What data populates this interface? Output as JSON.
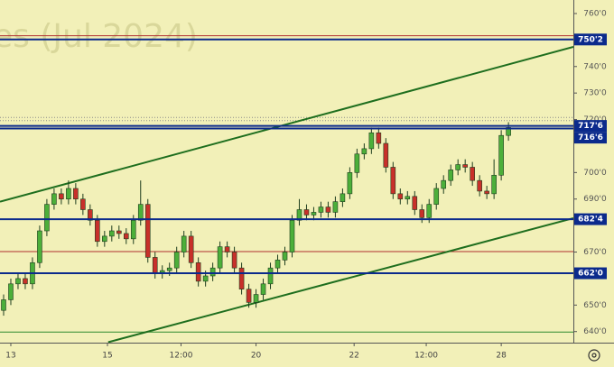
{
  "chart_data": {
    "type": "candlestick",
    "watermark": "es (Jul 2024)",
    "xlim": [
      -0.5,
      79
    ],
    "ylim": [
      636.5,
      765.1
    ],
    "xticks": [
      {
        "value": 1,
        "label": "13"
      },
      {
        "value": 14.4,
        "label": "15"
      },
      {
        "value": 24.6,
        "label": "12:00"
      },
      {
        "value": 35,
        "label": "20"
      },
      {
        "value": 48.6,
        "label": "22"
      },
      {
        "value": 58.6,
        "label": "12:00"
      },
      {
        "value": 69,
        "label": "28"
      }
    ],
    "yticks": [
      {
        "value": 760,
        "label": "760'0"
      },
      {
        "value": 740,
        "label": "740'0"
      },
      {
        "value": 730,
        "label": "730'0"
      },
      {
        "value": 720,
        "label": "720'0"
      },
      {
        "value": 700,
        "label": "700'0"
      },
      {
        "value": 690,
        "label": "690'0"
      },
      {
        "value": 670,
        "label": "670'0"
      },
      {
        "value": 650,
        "label": "650'0"
      },
      {
        "value": 640,
        "label": "640'0"
      }
    ],
    "up_color": "#4caf3a",
    "down_color": "#c8302a",
    "open": [
      648,
      652,
      658,
      660,
      658,
      666,
      678,
      688,
      692,
      690,
      694,
      690,
      686,
      682,
      674,
      676,
      678,
      677,
      675,
      682,
      688,
      668,
      662,
      663,
      664,
      670,
      676,
      666,
      659,
      661,
      664,
      672,
      670,
      664,
      656,
      651,
      654,
      658,
      664,
      667,
      670,
      682,
      686,
      684,
      685,
      687,
      685,
      689,
      692,
      700,
      707,
      709,
      715,
      711,
      702,
      692,
      690,
      691,
      686,
      683,
      688,
      694,
      697,
      701,
      703,
      702,
      697,
      693,
      692,
      699,
      714
    ],
    "high": [
      654,
      660,
      662,
      662,
      668,
      680,
      690,
      694,
      694,
      697,
      696,
      692,
      688,
      684,
      678,
      680,
      680,
      679,
      684,
      697,
      690,
      670,
      665,
      666,
      672,
      678,
      678,
      668,
      663,
      666,
      674,
      674,
      672,
      666,
      658,
      656,
      660,
      666,
      669,
      672,
      684,
      690,
      688,
      687,
      689,
      689,
      691,
      694,
      702,
      709,
      711,
      717,
      717,
      713,
      704,
      694,
      693,
      693,
      688,
      690,
      696,
      699,
      703,
      705,
      705,
      704,
      699,
      695,
      705,
      716,
      719
    ],
    "low": [
      646,
      650,
      656,
      656,
      656,
      664,
      676,
      686,
      688,
      688,
      688,
      684,
      680,
      672,
      672,
      674,
      675,
      673,
      673,
      680,
      666,
      660,
      660,
      661,
      662,
      668,
      664,
      657,
      657,
      659,
      662,
      668,
      662,
      654,
      649,
      649,
      652,
      656,
      662,
      665,
      668,
      680,
      682,
      682,
      683,
      683,
      683,
      687,
      690,
      698,
      705,
      707,
      709,
      700,
      690,
      688,
      688,
      684,
      681,
      681,
      686,
      692,
      695,
      699,
      700,
      695,
      691,
      690,
      690,
      697,
      712
    ],
    "close": [
      652,
      658,
      660,
      658,
      666,
      678,
      688,
      692,
      690,
      694,
      690,
      686,
      682,
      674,
      676,
      678,
      677,
      675,
      682,
      688,
      668,
      662,
      663,
      664,
      670,
      676,
      666,
      659,
      661,
      664,
      672,
      670,
      664,
      656,
      651,
      654,
      658,
      664,
      667,
      670,
      682,
      686,
      684,
      685,
      687,
      685,
      689,
      692,
      700,
      707,
      709,
      715,
      711,
      702,
      692,
      690,
      691,
      686,
      683,
      688,
      694,
      697,
      701,
      703,
      702,
      697,
      693,
      692,
      699,
      714,
      717
    ],
    "levels": [
      {
        "value": 750.2,
        "label": "750'2",
        "color": "#0b2a8c"
      },
      {
        "value": 717.6,
        "label": "717'6",
        "color": "#0b2a8c"
      },
      {
        "value": 716.6,
        "label": "716'6",
        "color": "#0b2a8c"
      },
      {
        "value": 682.4,
        "label": "682'4",
        "color": "#0b2a8c"
      },
      {
        "value": 662.0,
        "label": "662'0",
        "color": "#0b2a8c"
      }
    ],
    "lines": [
      {
        "value": 751.6,
        "color": "#b03030"
      },
      {
        "value": 670.2,
        "color": "#b03030"
      },
      {
        "value": 720.8,
        "color": "#8a8a8a",
        "dash": true
      },
      {
        "value": 719.6,
        "color": "#8a8a8a",
        "dash": true
      },
      {
        "value": 639.8,
        "color": "#2e8b2e"
      }
    ],
    "trendlines": [
      {
        "x": [
          -0.5,
          79
        ],
        "y": [
          689,
          747.4
        ],
        "color": "#1e6e1e"
      },
      {
        "x": [
          14.5,
          79
        ],
        "y": [
          636,
          682.8
        ],
        "color": "#1e6e1e"
      }
    ]
  }
}
